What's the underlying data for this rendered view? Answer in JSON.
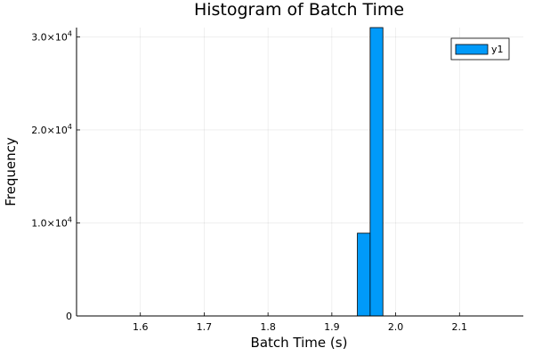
{
  "chart_data": {
    "type": "bar",
    "title": "Histogram of Batch Time",
    "xlabel": "Batch Time (s)",
    "ylabel": "Frequency",
    "xlim": [
      1.5,
      2.2
    ],
    "ylim": [
      0,
      31000
    ],
    "x_ticks": [
      {
        "value": 1.6,
        "label": "1.6"
      },
      {
        "value": 1.7,
        "label": "1.7"
      },
      {
        "value": 1.8,
        "label": "1.8"
      },
      {
        "value": 1.9,
        "label": "1.9"
      },
      {
        "value": 2.0,
        "label": "2.0"
      },
      {
        "value": 2.1,
        "label": "2.1"
      }
    ],
    "y_ticks": [
      {
        "value": 0,
        "mantissa": "0",
        "exponent": ""
      },
      {
        "value": 10000,
        "mantissa": "1.0×10",
        "exponent": "4"
      },
      {
        "value": 20000,
        "mantissa": "2.0×10",
        "exponent": "4"
      },
      {
        "value": 30000,
        "mantissa": "3.0×10",
        "exponent": "4"
      }
    ],
    "bins": [
      {
        "x0": 1.94,
        "x1": 1.96,
        "count": 8900
      },
      {
        "x0": 1.96,
        "x1": 1.98,
        "count": 31000
      }
    ],
    "series": [
      {
        "name": "y1",
        "color": "#009AF9"
      }
    ],
    "grid": true,
    "legend_position": "top-right"
  }
}
